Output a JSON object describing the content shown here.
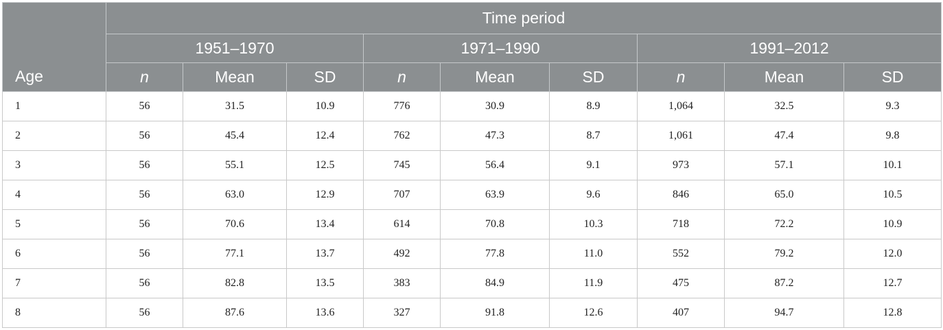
{
  "table": {
    "age_header": "Age",
    "group_header": "Time period",
    "periods": [
      "1951–1970",
      "1971–1990",
      "1991–2012"
    ],
    "sub_headers": {
      "n": "n",
      "mean": "Mean",
      "sd": "SD"
    },
    "rows": [
      {
        "age": "1",
        "cells": [
          "56",
          "31.5",
          "10.9",
          "776",
          "30.9",
          "8.9",
          "1,064",
          "32.5",
          "9.3"
        ]
      },
      {
        "age": "2",
        "cells": [
          "56",
          "45.4",
          "12.4",
          "762",
          "47.3",
          "8.7",
          "1,061",
          "47.4",
          "9.8"
        ]
      },
      {
        "age": "3",
        "cells": [
          "56",
          "55.1",
          "12.5",
          "745",
          "56.4",
          "9.1",
          "973",
          "57.1",
          "10.1"
        ]
      },
      {
        "age": "4",
        "cells": [
          "56",
          "63.0",
          "12.9",
          "707",
          "63.9",
          "9.6",
          "846",
          "65.0",
          "10.5"
        ]
      },
      {
        "age": "5",
        "cells": [
          "56",
          "70.6",
          "13.4",
          "614",
          "70.8",
          "10.3",
          "718",
          "72.2",
          "10.9"
        ]
      },
      {
        "age": "6",
        "cells": [
          "56",
          "77.1",
          "13.7",
          "492",
          "77.8",
          "11.0",
          "552",
          "79.2",
          "12.0"
        ]
      },
      {
        "age": "7",
        "cells": [
          "56",
          "82.8",
          "13.5",
          "383",
          "84.9",
          "11.9",
          "475",
          "87.2",
          "12.7"
        ]
      },
      {
        "age": "8",
        "cells": [
          "56",
          "87.6",
          "13.6",
          "327",
          "91.8",
          "12.6",
          "407",
          "94.7",
          "12.8"
        ]
      }
    ],
    "colors": {
      "header_bg": "#8b8f91",
      "header_text": "#ffffff",
      "grid": "#c8c8c8"
    }
  }
}
